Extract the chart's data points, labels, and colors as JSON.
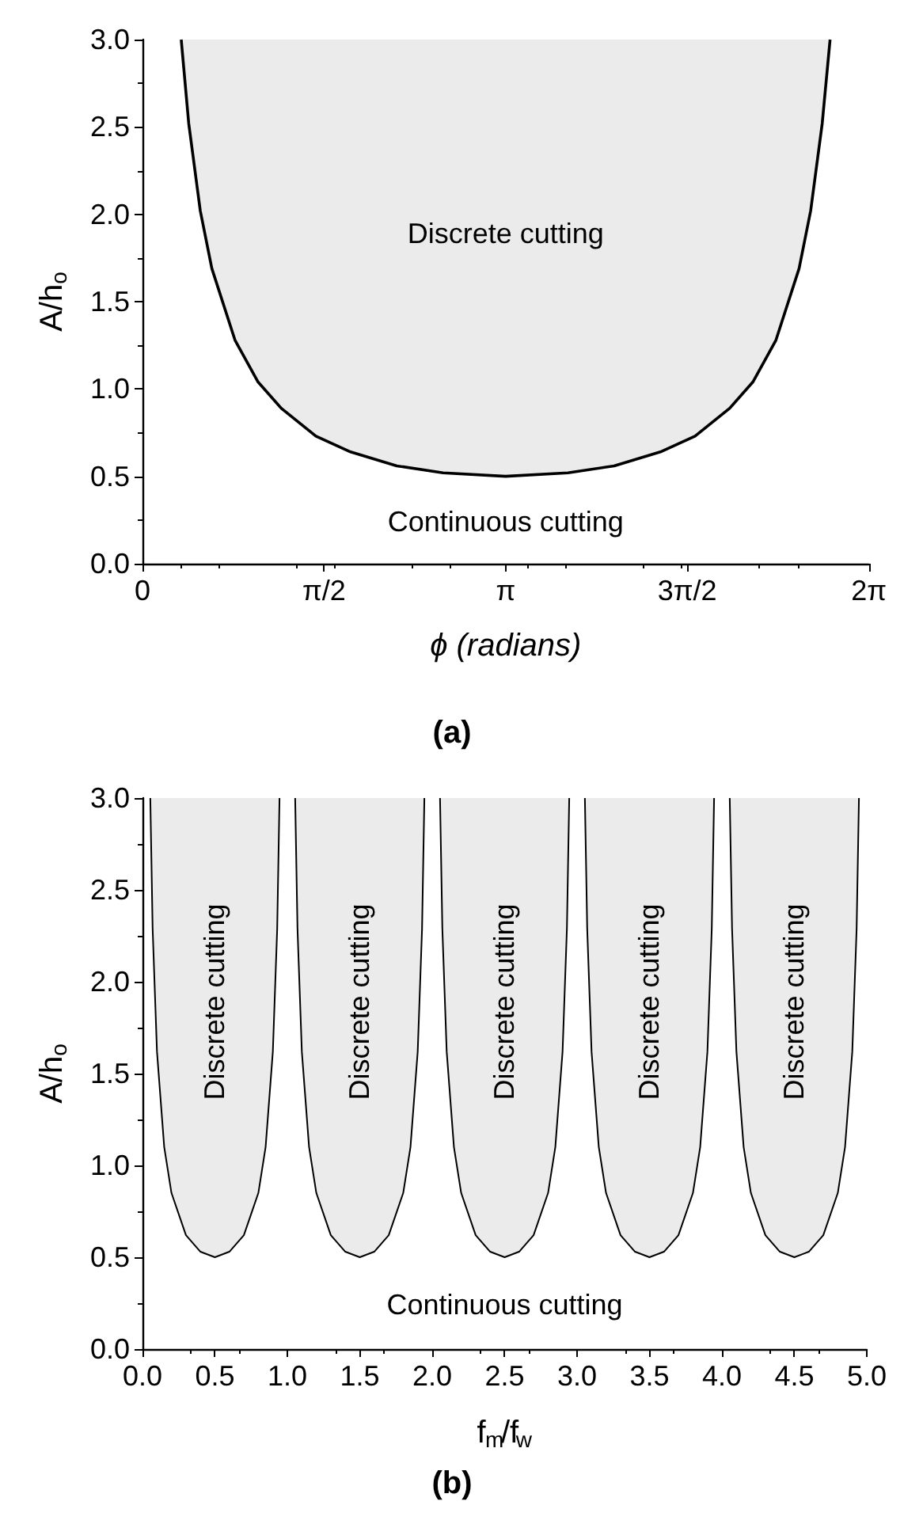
{
  "chart_data": [
    {
      "type": "line",
      "title": "(a)",
      "xlabel": "ϕ (radians)",
      "ylabel": "A/h$_{o}$",
      "x": [
        0.335,
        0.4,
        0.5,
        0.6,
        0.8,
        1.0,
        1.2,
        1.5,
        1.8,
        2.2,
        2.6,
        3.14,
        3.68,
        4.08,
        4.48,
        4.78,
        5.08,
        5.28,
        5.48,
        5.68,
        5.78,
        5.88,
        5.948
      ],
      "series": [
        {
          "color": "#000000",
          "values": [
            3.0,
            2.52,
            2.02,
            1.69,
            1.28,
            1.04,
            0.89,
            0.73,
            0.64,
            0.56,
            0.52,
            0.5,
            0.52,
            0.56,
            0.64,
            0.73,
            0.89,
            1.04,
            1.28,
            1.69,
            2.02,
            2.52,
            3.0
          ]
        }
      ],
      "xlim": [
        0,
        6.2832
      ],
      "xticks": [
        {
          "value": 0,
          "label": "0"
        },
        {
          "value": 1.5708,
          "label": "π/2"
        },
        {
          "value": 3.1416,
          "label": "π"
        },
        {
          "value": 4.7124,
          "label": "3π/2"
        },
        {
          "value": 6.2832,
          "label": "2π"
        }
      ],
      "ylim": [
        0,
        3
      ],
      "yticks": [
        {
          "value": 0,
          "label": "0.0"
        },
        0.5,
        {
          "value": 1,
          "label": "1.0"
        },
        1.5,
        {
          "value": 2,
          "label": "2.0"
        },
        2.5,
        {
          "value": 3,
          "label": "3.0"
        }
      ],
      "annotations": [
        "Discrete cutting",
        "Continuous cutting"
      ]
    },
    {
      "type": "line",
      "title": "(b)",
      "xlabel": "f$_{m}$/f$_{w}$",
      "ylabel": "A/h$_{o}$",
      "x": [
        0.054,
        0.07,
        0.1,
        0.15,
        0.2,
        0.3,
        0.4,
        0.5,
        0.6,
        0.7,
        0.8,
        0.85,
        0.9,
        0.93,
        0.946,
        1.0,
        1.054,
        1.07,
        1.1,
        1.15,
        1.2,
        1.3,
        1.4,
        1.5,
        1.6,
        1.7,
        1.8,
        1.85,
        1.9,
        1.93,
        1.946,
        2.0,
        2.054,
        2.07,
        2.1,
        2.15,
        2.2,
        2.3,
        2.4,
        2.5,
        2.6,
        2.7,
        2.8,
        2.85,
        2.9,
        2.93,
        2.946,
        3.0,
        3.054,
        3.07,
        3.1,
        3.15,
        3.2,
        3.3,
        3.4,
        3.5,
        3.6,
        3.7,
        3.8,
        3.85,
        3.9,
        3.93,
        3.946,
        4.0,
        4.054,
        4.07,
        4.1,
        4.15,
        4.2,
        4.3,
        4.4,
        4.5,
        4.6,
        4.7,
        4.8,
        4.85,
        4.9,
        4.93,
        4.946
      ],
      "series": [
        {
          "color": "#000000",
          "values": [
            3.0,
            2.29,
            1.62,
            1.1,
            0.85,
            0.62,
            0.53,
            0.5,
            0.53,
            0.62,
            0.85,
            1.1,
            1.62,
            2.29,
            3.0,
            null,
            3.0,
            2.29,
            1.62,
            1.1,
            0.85,
            0.62,
            0.53,
            0.5,
            0.53,
            0.62,
            0.85,
            1.1,
            1.62,
            2.29,
            3.0,
            null,
            3.0,
            2.29,
            1.62,
            1.1,
            0.85,
            0.62,
            0.53,
            0.5,
            0.53,
            0.62,
            0.85,
            1.1,
            1.62,
            2.29,
            3.0,
            null,
            3.0,
            2.29,
            1.62,
            1.1,
            0.85,
            0.62,
            0.53,
            0.5,
            0.53,
            0.62,
            0.85,
            1.1,
            1.62,
            2.29,
            3.0,
            null,
            3.0,
            2.29,
            1.62,
            1.1,
            0.85,
            0.62,
            0.53,
            0.5,
            0.53,
            0.62,
            0.85,
            1.1,
            1.62,
            2.29,
            3.0
          ]
        }
      ],
      "xlim": [
        0,
        5
      ],
      "xticks": [
        {
          "value": 0,
          "label": "0.0"
        },
        0.5,
        {
          "value": 1,
          "label": "1.0"
        },
        1.5,
        {
          "value": 2,
          "label": "2.0"
        },
        2.5,
        {
          "value": 3,
          "label": "3.0"
        },
        3.5,
        {
          "value": 4,
          "label": "4.0"
        },
        4.5,
        {
          "value": 5,
          "label": "5.0"
        }
      ],
      "ylim": [
        0,
        3
      ],
      "yticks": [
        {
          "value": 0,
          "label": "0.0"
        },
        0.5,
        {
          "value": 1,
          "label": "1.0"
        },
        1.5,
        {
          "value": 2,
          "label": "2.0"
        },
        2.5,
        {
          "value": 3,
          "label": "3.0"
        }
      ],
      "annotations": [
        "Discrete cutting",
        "Discrete cutting",
        "Discrete cutting",
        "Discrete cutting",
        "Discrete cutting",
        "Continuous cutting"
      ]
    }
  ]
}
